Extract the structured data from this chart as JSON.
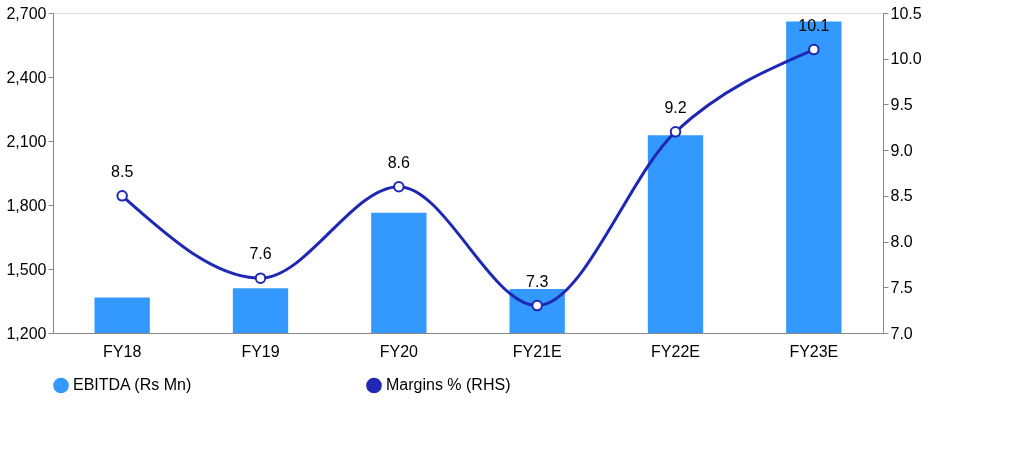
{
  "chart_data": {
    "type": "bar",
    "categories": [
      "FY18",
      "FY19",
      "FY20",
      "FY21E",
      "FY22E",
      "FY23E"
    ],
    "series": [
      {
        "name": "EBITDA (Rs Mn)",
        "color": "#3399ff",
        "values": [
          1366,
          1410,
          1764,
          1406,
          2127,
          2660
        ]
      },
      {
        "name": "Margins % (RHS)",
        "type": "line",
        "axis": "y2",
        "color": "#1f28b4",
        "marker": "circle",
        "values": [
          8.5,
          7.6,
          8.6,
          7.3,
          9.2,
          10.1
        ],
        "value_labels": [
          "8.5",
          "7.6",
          "8.6",
          "7.3",
          "9.2",
          "10.1"
        ]
      }
    ],
    "ylim": [
      1200,
      2700
    ],
    "yticks": [
      {
        "value": 1200,
        "label": "1,200"
      },
      {
        "value": 1500,
        "label": "1,500"
      },
      {
        "value": 1800,
        "label": "1,800"
      },
      {
        "value": 2100,
        "label": "2,100"
      },
      {
        "value": 2400,
        "label": "2,400"
      },
      {
        "value": 2700,
        "label": "2,700"
      }
    ],
    "y2lim": [
      7.0,
      10.5
    ],
    "y2ticks": [
      {
        "value": 7,
        "label": "7.0"
      },
      {
        "value": 7.5,
        "label": "7.5"
      },
      {
        "value": 8,
        "label": "8.0"
      },
      {
        "value": 8.5,
        "label": "8.5"
      },
      {
        "value": 9,
        "label": "9.0"
      },
      {
        "value": 9.5,
        "label": "9.5"
      },
      {
        "value": 10,
        "label": "10.0"
      },
      {
        "value": 10.5,
        "label": "10.5"
      }
    ],
    "grid": false,
    "legend": "bottom"
  }
}
